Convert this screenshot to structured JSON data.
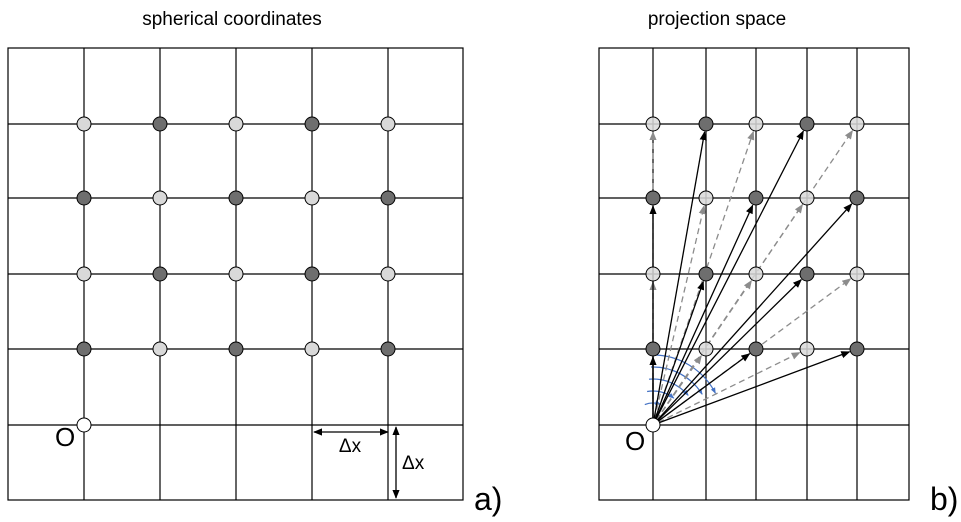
{
  "panel_a": {
    "title": "spherical coordinates",
    "origin_label": "O",
    "dx_label_horizontal": "Δx",
    "dx_label_vertical": "Δx",
    "panel_label": "a)"
  },
  "panel_b": {
    "title": "projection space",
    "origin_label": "O",
    "panel_label": "b)"
  },
  "colors": {
    "light_node": "#d9d9d9",
    "dark_node": "#6e6e6e",
    "origin_node": "#ffffff",
    "solid_arrow": "#000000",
    "dashed_arrow": "#8c8c8c",
    "angle_arc": "#4472c4"
  }
}
